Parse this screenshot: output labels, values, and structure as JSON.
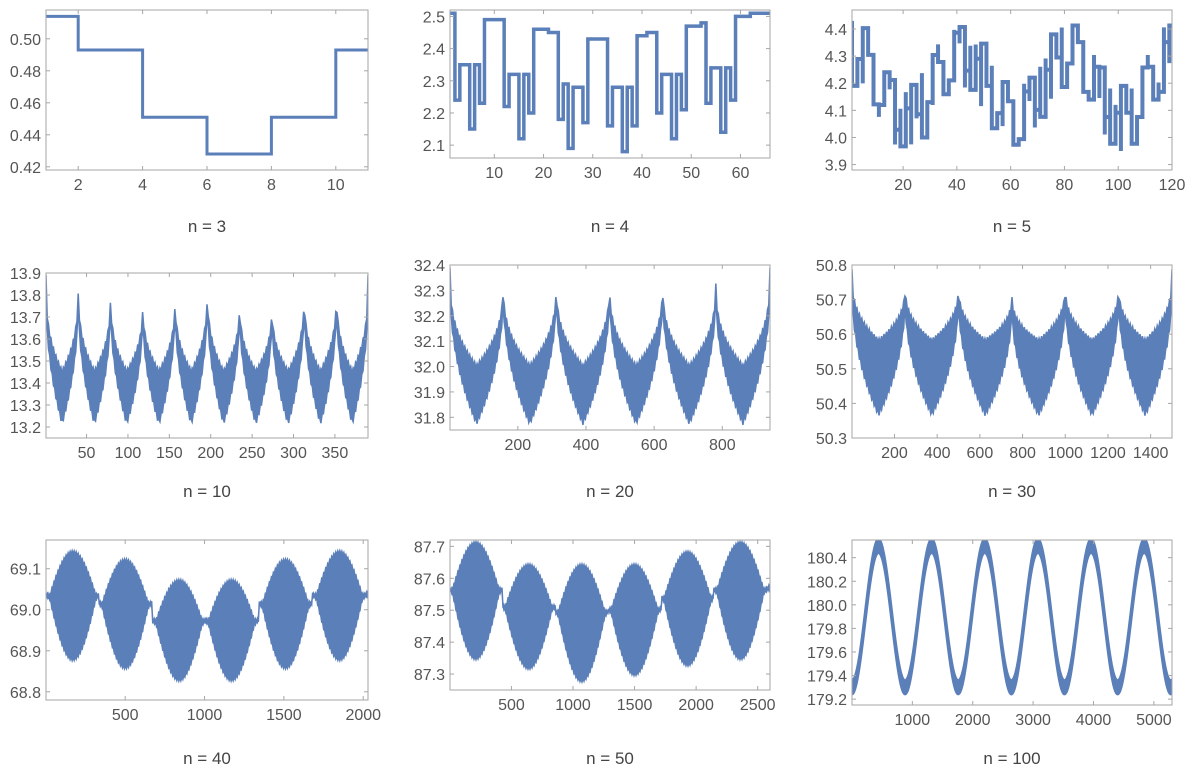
{
  "chart_data": [
    {
      "type": "line",
      "caption": "n = 3",
      "xlim": [
        1,
        11
      ],
      "ylim": [
        0.418,
        0.518
      ],
      "xticks": [
        2,
        4,
        6,
        8,
        10
      ],
      "yticks": [
        0.42,
        0.44,
        0.46,
        0.48,
        0.5
      ],
      "ytick_labels": [
        "0.42",
        "0.44",
        "0.46",
        "0.48",
        "0.50"
      ],
      "style": "step",
      "color": "#5b7fb9",
      "x": [
        1,
        2,
        2,
        4,
        4,
        6,
        6,
        8,
        8,
        10,
        10,
        11
      ],
      "y": [
        0.514,
        0.514,
        0.493,
        0.493,
        0.451,
        0.451,
        0.428,
        0.428,
        0.451,
        0.451,
        0.493,
        0.493
      ]
    },
    {
      "type": "line",
      "caption": "n = 4",
      "xlim": [
        1,
        66
      ],
      "ylim": [
        2.06,
        2.52
      ],
      "xticks": [
        10,
        20,
        30,
        40,
        50,
        60
      ],
      "yticks": [
        2.1,
        2.2,
        2.3,
        2.4,
        2.5
      ],
      "ytick_labels": [
        "2.1",
        "2.2",
        "2.3",
        "2.4",
        "2.5"
      ],
      "style": "step-thick",
      "color": "#5b7fb9",
      "x": [
        1,
        2,
        3,
        5,
        6,
        7,
        8,
        9,
        10,
        12,
        13,
        15,
        16,
        17,
        18,
        20,
        21,
        23,
        24,
        25,
        26,
        28,
        29,
        30,
        31,
        33,
        34,
        36,
        37,
        38,
        39,
        40,
        41,
        43,
        44,
        46,
        47,
        48,
        49,
        51,
        52,
        53,
        54,
        56,
        57,
        58,
        59,
        61,
        62,
        64,
        65,
        66
      ],
      "y": [
        2.51,
        2.24,
        2.35,
        2.15,
        2.35,
        2.23,
        2.49,
        2.49,
        2.49,
        2.22,
        2.32,
        2.12,
        2.32,
        2.2,
        2.46,
        2.46,
        2.45,
        2.18,
        2.29,
        2.09,
        2.28,
        2.17,
        2.43,
        2.43,
        2.43,
        2.16,
        2.28,
        2.08,
        2.28,
        2.16,
        2.44,
        2.44,
        2.45,
        2.2,
        2.32,
        2.12,
        2.32,
        2.21,
        2.47,
        2.47,
        2.48,
        2.23,
        2.34,
        2.14,
        2.34,
        2.24,
        2.5,
        2.5,
        2.51,
        2.51,
        2.51,
        2.51
      ]
    },
    {
      "type": "line",
      "caption": "n = 5",
      "xlim": [
        1,
        120
      ],
      "ylim": [
        3.88,
        4.47
      ],
      "xticks": [
        20,
        40,
        60,
        80,
        100,
        120
      ],
      "yticks": [
        3.9,
        4.0,
        4.1,
        4.2,
        4.3,
        4.4
      ],
      "ytick_labels": [
        "3.9",
        "4.0",
        "4.1",
        "4.2",
        "4.3",
        "4.4"
      ],
      "style": "band",
      "color": "#5b7fb9",
      "period": 20,
      "base": 4.19,
      "amplitude": 0.22,
      "envelope_low": [
        4.22,
        4.01,
        4.22,
        4.44,
        4.22,
        4.01,
        4.22
      ],
      "envelope_high": [
        4.45,
        4.22,
        4.01,
        4.22,
        4.44,
        4.22,
        4.45
      ]
    },
    {
      "type": "line",
      "caption": "n = 10",
      "xlim": [
        1,
        390
      ],
      "ylim": [
        13.15,
        13.9
      ],
      "xticks": [
        50,
        100,
        150,
        200,
        250,
        300,
        350
      ],
      "yticks": [
        13.2,
        13.3,
        13.4,
        13.5,
        13.6,
        13.7,
        13.8,
        13.9
      ],
      "ytick_labels": [
        "13.2",
        "13.3",
        "13.4",
        "13.5",
        "13.6",
        "13.7",
        "13.8",
        "13.9"
      ],
      "style": "band",
      "color": "#5b7fb9",
      "peaks": [
        1,
        40,
        79,
        118,
        157,
        196,
        235,
        274,
        313,
        352,
        390
      ],
      "peak_values": [
        13.88,
        13.86,
        13.83,
        13.79,
        13.82,
        13.86,
        13.8,
        13.78,
        13.84,
        13.85,
        13.88
      ],
      "trough_high": 13.45,
      "trough_low": 13.22
    },
    {
      "type": "line",
      "caption": "n = 20",
      "xlim": [
        1,
        940
      ],
      "ylim": [
        31.75,
        32.4
      ],
      "xticks": [
        200,
        400,
        600,
        800
      ],
      "yticks": [
        31.8,
        31.9,
        32.0,
        32.1,
        32.2,
        32.3,
        32.4
      ],
      "ytick_labels": [
        "31.8",
        "31.9",
        "32.0",
        "32.1",
        "32.2",
        "32.3",
        "32.4"
      ],
      "style": "band",
      "color": "#5b7fb9",
      "peaks": [
        1,
        157,
        313,
        469,
        625,
        781,
        940
      ],
      "peak_values": [
        32.38,
        32.35,
        32.35,
        32.35,
        32.35,
        32.35,
        32.38
      ],
      "trough_high": 32.0,
      "trough_low": 31.78
    },
    {
      "type": "line",
      "caption": "n = 30",
      "xlim": [
        1,
        1500
      ],
      "ylim": [
        50.3,
        50.8
      ],
      "xticks": [
        200,
        400,
        600,
        800,
        1000,
        1200,
        1400
      ],
      "yticks": [
        50.3,
        50.4,
        50.5,
        50.6,
        50.7,
        50.8
      ],
      "ytick_labels": [
        "50.3",
        "50.4",
        "50.5",
        "50.6",
        "50.7",
        "50.8"
      ],
      "style": "band",
      "color": "#5b7fb9",
      "peaks": [
        1,
        250,
        500,
        750,
        1000,
        1250,
        1500
      ],
      "peak_values": [
        50.78,
        50.75,
        50.75,
        50.72,
        50.75,
        50.75,
        50.78
      ],
      "trough_high": 50.58,
      "trough_low": 50.37
    },
    {
      "type": "line",
      "caption": "n = 40",
      "xlim": [
        1,
        2030
      ],
      "ylim": [
        68.78,
        69.17
      ],
      "xticks": [
        500,
        1000,
        1500,
        2000
      ],
      "yticks": [
        68.8,
        68.9,
        69.0,
        69.1
      ],
      "ytick_labels": [
        "68.8",
        "68.9",
        "69.0",
        "69.1"
      ],
      "style": "band",
      "color": "#5b7fb9",
      "humps": [
        170,
        500,
        840,
        1170,
        1510,
        1850
      ],
      "hump_top": [
        69.14,
        69.12,
        69.07,
        69.07,
        69.12,
        69.14
      ],
      "hump_bottom": [
        68.88,
        68.86,
        68.83,
        68.83,
        68.86,
        68.88
      ]
    },
    {
      "type": "line",
      "caption": "n = 50",
      "xlim": [
        1,
        2600
      ],
      "ylim": [
        87.25,
        87.72
      ],
      "xticks": [
        500,
        1000,
        1500,
        2000,
        2500
      ],
      "yticks": [
        87.3,
        87.4,
        87.5,
        87.6,
        87.7
      ],
      "ytick_labels": [
        "87.3",
        "87.4",
        "87.5",
        "87.6",
        "87.7"
      ],
      "style": "band",
      "color": "#5b7fb9",
      "humps": [
        210,
        640,
        1070,
        1500,
        1930,
        2360
      ],
      "hump_top": [
        87.71,
        87.64,
        87.64,
        87.64,
        87.68,
        87.71
      ],
      "hump_bottom": [
        87.35,
        87.32,
        87.28,
        87.3,
        87.33,
        87.35
      ]
    },
    {
      "type": "line",
      "caption": "n = 100",
      "xlim": [
        1,
        5300
      ],
      "ylim": [
        179.15,
        180.55
      ],
      "xticks": [
        1000,
        2000,
        3000,
        4000,
        5000
      ],
      "yticks": [
        179.2,
        179.4,
        179.6,
        179.8,
        180.0,
        180.2,
        180.4
      ],
      "ytick_labels": [
        "179.2",
        "179.4",
        "179.6",
        "179.8",
        "180.0",
        "180.2",
        "180.4"
      ],
      "style": "sine",
      "color": "#5b7fb9",
      "period": 880,
      "first_peak": 440,
      "max": 180.5,
      "min": 179.3,
      "thickness": 0.12
    }
  ]
}
